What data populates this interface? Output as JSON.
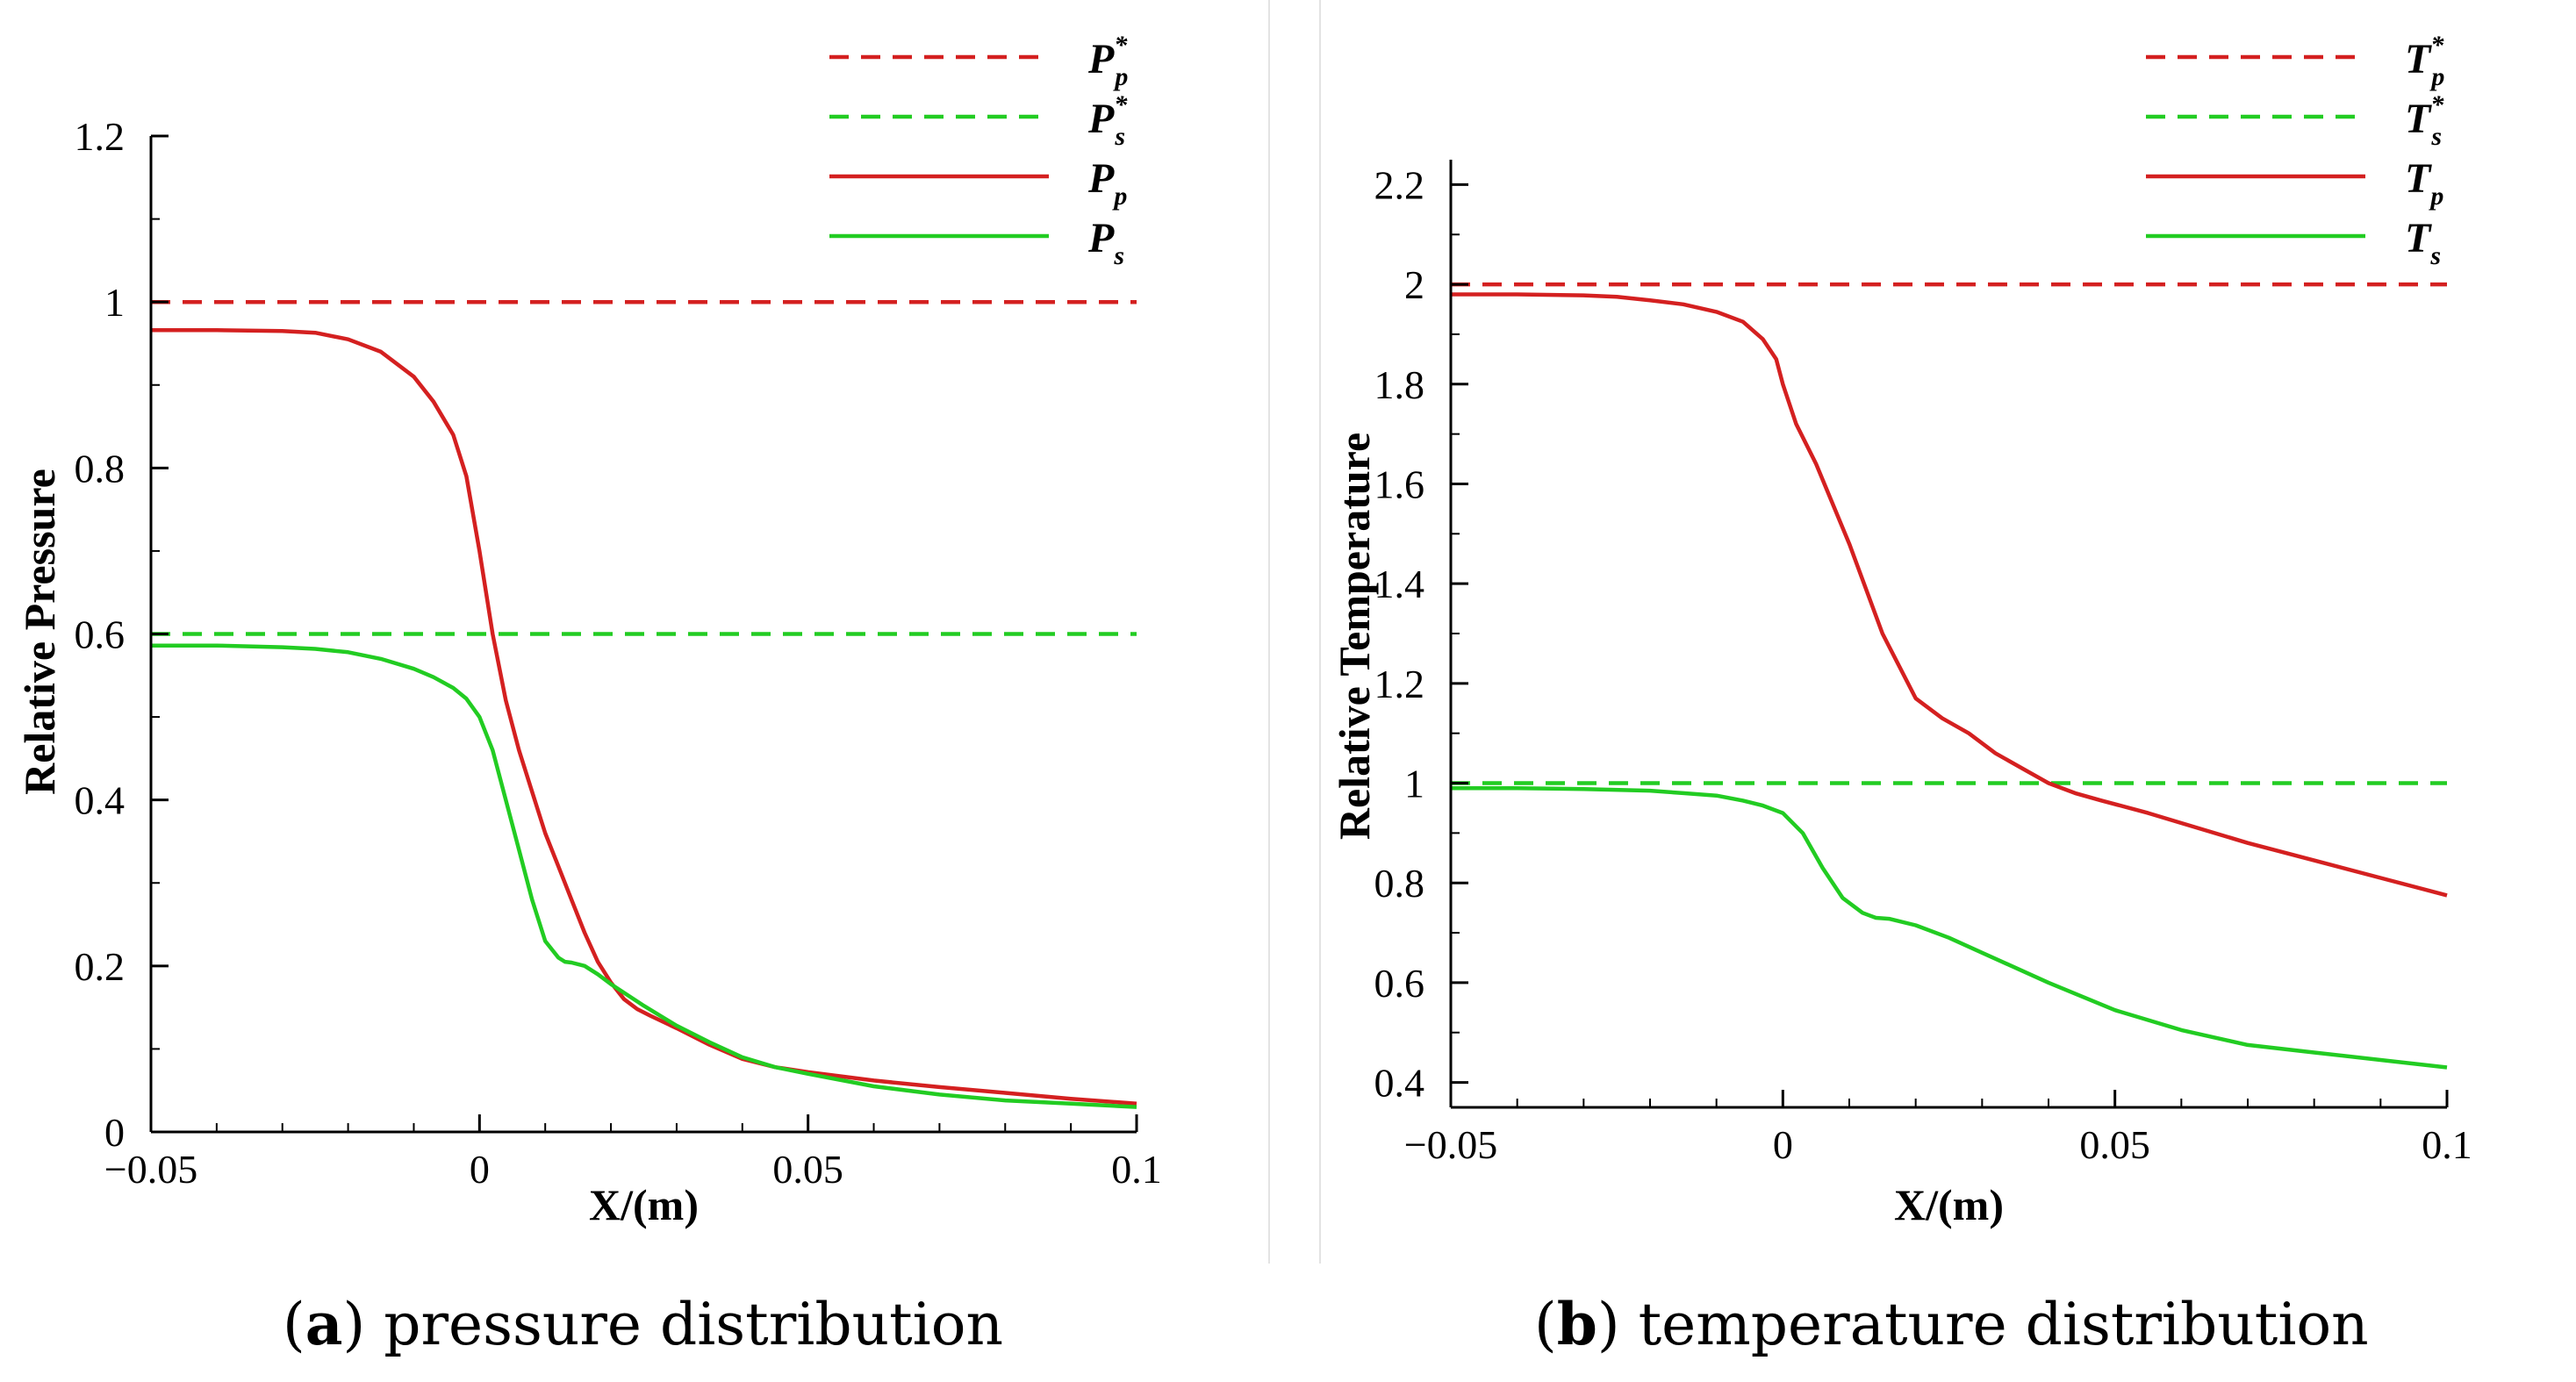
{
  "chart_data": [
    {
      "id": "a",
      "type": "line",
      "xlabel": "X/(m)",
      "ylabel": "Relative Pressure",
      "xlim": [
        -0.05,
        0.1
      ],
      "ylim": [
        0,
        1.2
      ],
      "xticks": [
        {
          "value": -0.05,
          "label": "−0.05"
        },
        {
          "value": 0,
          "label": "0"
        },
        {
          "value": 0.05,
          "label": "0.05"
        },
        {
          "value": 0.1,
          "label": "0.1"
        }
      ],
      "yticks": [
        {
          "value": 0,
          "label": "0"
        },
        {
          "value": 0.2,
          "label": "0.2"
        },
        {
          "value": 0.4,
          "label": "0.4"
        },
        {
          "value": 0.6,
          "label": "0.6"
        },
        {
          "value": 0.8,
          "label": "0.8"
        },
        {
          "value": 1,
          "label": "1"
        },
        {
          "value": 1.2,
          "label": "1.2"
        }
      ],
      "series": [
        {
          "name": "P_p*",
          "symbol": "P",
          "sub": "p",
          "star": true,
          "color": "#d42020",
          "dash": true,
          "x": [
            -0.05,
            0.1
          ],
          "y": [
            1.0,
            1.0
          ]
        },
        {
          "name": "P_s*",
          "symbol": "P",
          "sub": "s",
          "star": true,
          "color": "#22cc22",
          "dash": true,
          "x": [
            -0.05,
            0.1
          ],
          "y": [
            0.6,
            0.6
          ]
        },
        {
          "name": "P_p",
          "symbol": "P",
          "sub": "p",
          "star": false,
          "color": "#d42020",
          "dash": false,
          "x": [
            -0.05,
            -0.04,
            -0.03,
            -0.025,
            -0.02,
            -0.015,
            -0.01,
            -0.007,
            -0.004,
            -0.002,
            0,
            0.002,
            0.004,
            0.006,
            0.008,
            0.01,
            0.012,
            0.014,
            0.016,
            0.018,
            0.02,
            0.022,
            0.024,
            0.026,
            0.03,
            0.035,
            0.04,
            0.045,
            0.05,
            0.06,
            0.07,
            0.08,
            0.09,
            0.1
          ],
          "y": [
            0.966,
            0.966,
            0.965,
            0.963,
            0.955,
            0.94,
            0.91,
            0.88,
            0.84,
            0.79,
            0.7,
            0.6,
            0.52,
            0.46,
            0.41,
            0.36,
            0.32,
            0.28,
            0.24,
            0.205,
            0.18,
            0.16,
            0.148,
            0.14,
            0.125,
            0.105,
            0.088,
            0.078,
            0.072,
            0.062,
            0.054,
            0.047,
            0.04,
            0.034
          ]
        },
        {
          "name": "P_s",
          "symbol": "P",
          "sub": "s",
          "star": false,
          "color": "#22cc22",
          "dash": false,
          "x": [
            -0.05,
            -0.04,
            -0.03,
            -0.025,
            -0.02,
            -0.015,
            -0.01,
            -0.007,
            -0.004,
            -0.002,
            0,
            0.002,
            0.004,
            0.006,
            0.008,
            0.01,
            0.012,
            0.013,
            0.014,
            0.016,
            0.018,
            0.02,
            0.025,
            0.03,
            0.035,
            0.04,
            0.045,
            0.05,
            0.06,
            0.07,
            0.08,
            0.09,
            0.1
          ],
          "y": [
            0.586,
            0.586,
            0.584,
            0.582,
            0.578,
            0.57,
            0.558,
            0.548,
            0.535,
            0.522,
            0.5,
            0.46,
            0.4,
            0.34,
            0.28,
            0.23,
            0.21,
            0.205,
            0.204,
            0.2,
            0.19,
            0.178,
            0.152,
            0.128,
            0.108,
            0.09,
            0.078,
            0.07,
            0.055,
            0.045,
            0.038,
            0.034,
            0.03
          ]
        }
      ]
    },
    {
      "id": "b",
      "type": "line",
      "xlabel": "X/(m)",
      "ylabel": "Relative Temperature",
      "xlim": [
        -0.05,
        0.1
      ],
      "ylim": [
        0.35,
        2.25
      ],
      "xticks": [
        {
          "value": -0.05,
          "label": "−0.05"
        },
        {
          "value": 0,
          "label": "0"
        },
        {
          "value": 0.05,
          "label": "0.05"
        },
        {
          "value": 0.1,
          "label": "0.1"
        }
      ],
      "yticks": [
        {
          "value": 0.4,
          "label": "0.4"
        },
        {
          "value": 0.6,
          "label": "0.6"
        },
        {
          "value": 0.8,
          "label": "0.8"
        },
        {
          "value": 1,
          "label": "1"
        },
        {
          "value": 1.2,
          "label": "1.2"
        },
        {
          "value": 1.4,
          "label": "1.4"
        },
        {
          "value": 1.6,
          "label": "1.6"
        },
        {
          "value": 1.8,
          "label": "1.8"
        },
        {
          "value": 2,
          "label": "2"
        },
        {
          "value": 2.2,
          "label": "2.2"
        }
      ],
      "series": [
        {
          "name": "T_p*",
          "symbol": "T",
          "sub": "p",
          "star": true,
          "color": "#d42020",
          "dash": true,
          "x": [
            -0.05,
            0.1
          ],
          "y": [
            2.0,
            2.0
          ]
        },
        {
          "name": "T_s*",
          "symbol": "T",
          "sub": "s",
          "star": true,
          "color": "#22cc22",
          "dash": true,
          "x": [
            -0.05,
            0.1
          ],
          "y": [
            1.0,
            1.0
          ]
        },
        {
          "name": "T_p",
          "symbol": "T",
          "sub": "p",
          "star": false,
          "color": "#d42020",
          "dash": false,
          "x": [
            -0.05,
            -0.04,
            -0.03,
            -0.025,
            -0.02,
            -0.015,
            -0.01,
            -0.006,
            -0.003,
            -0.001,
            0,
            0.002,
            0.005,
            0.01,
            0.015,
            0.02,
            0.024,
            0.028,
            0.032,
            0.036,
            0.04,
            0.044,
            0.048,
            0.055,
            0.06,
            0.07,
            0.08,
            0.09,
            0.1
          ],
          "y": [
            1.98,
            1.98,
            1.978,
            1.975,
            1.968,
            1.96,
            1.945,
            1.925,
            1.89,
            1.85,
            1.8,
            1.72,
            1.64,
            1.48,
            1.3,
            1.17,
            1.13,
            1.1,
            1.06,
            1.03,
            1.0,
            0.98,
            0.965,
            0.94,
            0.92,
            0.88,
            0.845,
            0.81,
            0.775
          ]
        },
        {
          "name": "T_s",
          "symbol": "T",
          "sub": "s",
          "star": false,
          "color": "#22cc22",
          "dash": false,
          "x": [
            -0.05,
            -0.04,
            -0.03,
            -0.02,
            -0.015,
            -0.01,
            -0.006,
            -0.003,
            0,
            0.003,
            0.006,
            0.009,
            0.012,
            0.013,
            0.014,
            0.016,
            0.02,
            0.025,
            0.03,
            0.04,
            0.05,
            0.06,
            0.07,
            0.08,
            0.09,
            0.1
          ],
          "y": [
            0.99,
            0.99,
            0.988,
            0.985,
            0.98,
            0.975,
            0.965,
            0.955,
            0.94,
            0.9,
            0.83,
            0.77,
            0.74,
            0.735,
            0.73,
            0.728,
            0.715,
            0.69,
            0.66,
            0.6,
            0.545,
            0.505,
            0.475,
            0.46,
            0.445,
            0.43
          ]
        }
      ]
    }
  ],
  "captions": {
    "a": {
      "letter": "a",
      "text": "pressure distribution"
    },
    "b": {
      "letter": "b",
      "text": "temperature distribution"
    }
  }
}
